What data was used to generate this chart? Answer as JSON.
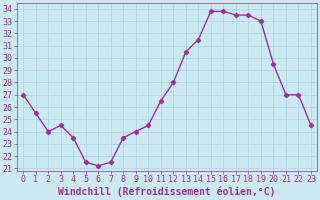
{
  "x": [
    0,
    1,
    2,
    3,
    4,
    5,
    6,
    7,
    8,
    9,
    10,
    11,
    12,
    13,
    14,
    15,
    16,
    17,
    18,
    19,
    20,
    21,
    22,
    23
  ],
  "y": [
    27,
    25.5,
    24,
    24.5,
    23.5,
    21.5,
    21.2,
    21.5,
    23.5,
    24,
    24.5,
    26.5,
    28,
    30.5,
    31.5,
    33.8,
    33.8,
    33.5,
    33.5,
    33.0,
    29.5,
    27,
    27,
    24.5
  ],
  "line_color": "#993399",
  "marker": "D",
  "marker_size": 2.2,
  "bg_color": "#cce8f0",
  "grid_color": "#b0d8e8",
  "xlabel": "Windchill (Refroidissement éolien,°C)",
  "xlabel_color": "#993399",
  "tick_color": "#993399",
  "label_color": "#993399",
  "ylim": [
    20.8,
    34.5
  ],
  "xlim": [
    -0.5,
    23.5
  ],
  "yticks": [
    21,
    22,
    23,
    24,
    25,
    26,
    27,
    28,
    29,
    30,
    31,
    32,
    33,
    34
  ],
  "xticks": [
    0,
    1,
    2,
    3,
    4,
    5,
    6,
    7,
    8,
    9,
    10,
    11,
    12,
    13,
    14,
    15,
    16,
    17,
    18,
    19,
    20,
    21,
    22,
    23
  ],
  "tick_fontsize": 6,
  "xlabel_fontsize": 7,
  "linewidth": 1.0
}
